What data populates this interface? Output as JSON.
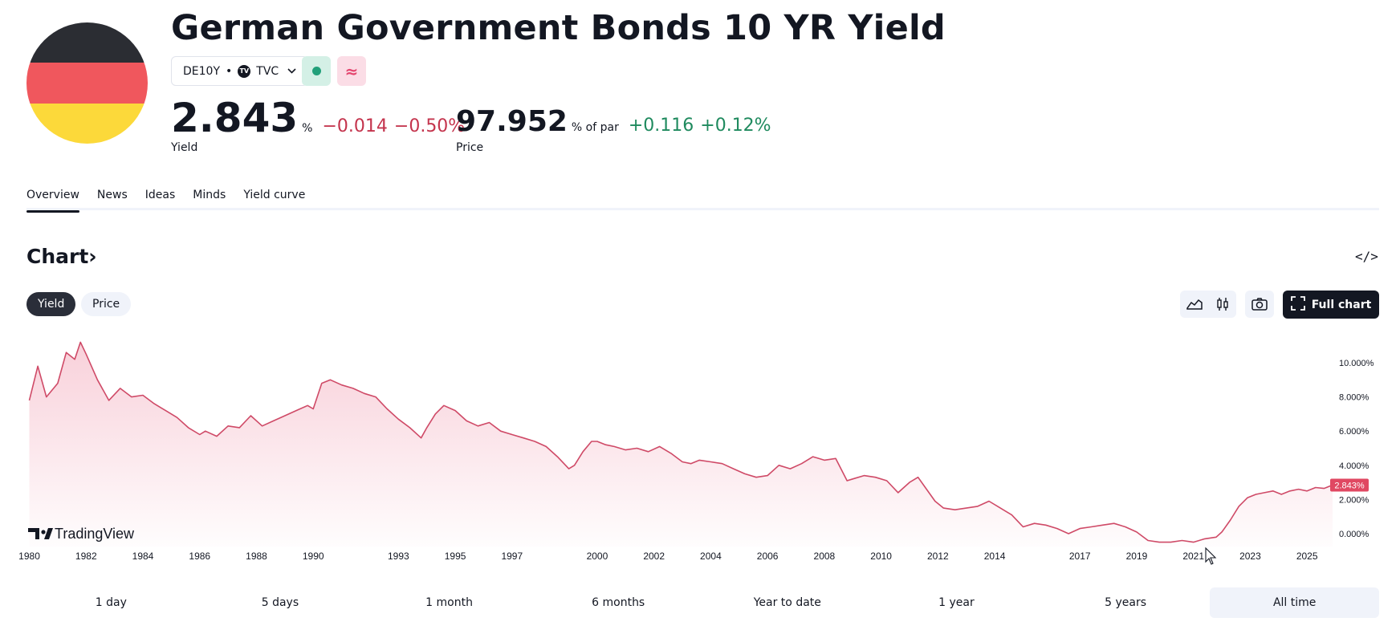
{
  "header": {
    "title": "German Government Bonds 10 YR Yield",
    "symbol": "DE10Y",
    "separator": "•",
    "exchange": "TVC",
    "exchange_logo": "TV",
    "market_badge_icon": "≈"
  },
  "yield": {
    "value": "2.843",
    "unit": "%",
    "change": "−0.014",
    "change_pct": "−0.50%",
    "label": "Yield"
  },
  "price": {
    "value": "97.952",
    "unit": "% of par",
    "change": "+0.116",
    "change_pct": "+0.12%",
    "label": "Price"
  },
  "tabs": [
    {
      "label": "Overview",
      "active": true
    },
    {
      "label": "News"
    },
    {
      "label": "Ideas"
    },
    {
      "label": "Minds"
    },
    {
      "label": "Yield curve"
    }
  ],
  "chart_section": {
    "heading": "Chart",
    "heading_arrow": "›",
    "embed_icon": "</>",
    "toggles": [
      {
        "label": "Yield",
        "active": true
      },
      {
        "label": "Price"
      }
    ],
    "full_chart_label": "Full chart",
    "watermark": "TradingView"
  },
  "colors": {
    "line": "#cf4a67",
    "fill": "#f8ced8",
    "badge_green": "#22a07a",
    "badge_pink": "#e4466f",
    "last_price_tag": "#e04862"
  },
  "icons": [
    "line-chart-icon",
    "candles-icon",
    "camera-icon",
    "fullscreen-icon",
    "code-icon",
    "tradingview-logo-icon"
  ],
  "chart_data": {
    "type": "area",
    "x_ticks": [
      "1980",
      "1982",
      "1984",
      "1986",
      "1988",
      "1990",
      "1993",
      "1995",
      "1997",
      "2000",
      "2002",
      "2004",
      "2006",
      "2008",
      "2010",
      "2012",
      "2014",
      "2017",
      "2019",
      "2021",
      "2023",
      "2025"
    ],
    "y_ticks": [
      "10.000%",
      "8.000%",
      "6.000%",
      "4.000%",
      "2.000%",
      "0.000%"
    ],
    "ylim": [
      -0.8,
      11.5
    ],
    "xlim": [
      1979.9,
      2025.9
    ],
    "last_value": "2.843%",
    "x": [
      1980.0,
      1980.3,
      1980.6,
      1981.0,
      1981.3,
      1981.6,
      1981.8,
      1982.0,
      1982.4,
      1982.8,
      1983.2,
      1983.6,
      1984.0,
      1984.4,
      1984.8,
      1985.2,
      1985.6,
      1986.0,
      1986.2,
      1986.6,
      1987.0,
      1987.4,
      1987.8,
      1988.2,
      1988.6,
      1989.0,
      1989.4,
      1989.8,
      1990.0,
      1990.3,
      1990.6,
      1991.0,
      1991.4,
      1991.8,
      1992.2,
      1992.6,
      1993.0,
      1993.4,
      1993.8,
      1994.0,
      1994.3,
      1994.6,
      1995.0,
      1995.4,
      1995.8,
      1996.2,
      1996.6,
      1997.0,
      1997.4,
      1997.8,
      1998.2,
      1998.6,
      1999.0,
      1999.2,
      1999.5,
      1999.8,
      2000.0,
      2000.3,
      2000.6,
      2001.0,
      2001.4,
      2001.8,
      2002.2,
      2002.6,
      2003.0,
      2003.3,
      2003.6,
      2004.0,
      2004.4,
      2004.8,
      2005.2,
      2005.6,
      2006.0,
      2006.4,
      2006.8,
      2007.2,
      2007.6,
      2008.0,
      2008.4,
      2008.8,
      2009.0,
      2009.4,
      2009.8,
      2010.2,
      2010.6,
      2011.0,
      2011.3,
      2011.6,
      2011.9,
      2012.2,
      2012.6,
      2013.0,
      2013.4,
      2013.8,
      2014.2,
      2014.6,
      2015.0,
      2015.4,
      2015.8,
      2016.2,
      2016.6,
      2017.0,
      2017.4,
      2017.8,
      2018.2,
      2018.6,
      2019.0,
      2019.4,
      2019.8,
      2020.2,
      2020.6,
      2021.0,
      2021.4,
      2021.8,
      2022.0,
      2022.3,
      2022.6,
      2022.9,
      2023.2,
      2023.5,
      2023.8,
      2024.1,
      2024.4,
      2024.7,
      2025.0,
      2025.3,
      2025.6,
      2025.9
    ],
    "values": [
      7.8,
      9.8,
      8.0,
      8.8,
      10.6,
      10.2,
      11.2,
      10.5,
      9.0,
      7.8,
      8.5,
      8.0,
      8.1,
      7.6,
      7.2,
      6.8,
      6.2,
      5.8,
      6.0,
      5.7,
      6.3,
      6.2,
      6.9,
      6.3,
      6.6,
      6.9,
      7.2,
      7.5,
      7.3,
      8.8,
      9.0,
      8.7,
      8.5,
      8.2,
      8.0,
      7.3,
      6.7,
      6.2,
      5.6,
      6.2,
      7.0,
      7.5,
      7.2,
      6.6,
      6.3,
      6.5,
      6.0,
      5.8,
      5.6,
      5.4,
      5.1,
      4.5,
      3.8,
      4.0,
      4.8,
      5.4,
      5.4,
      5.2,
      5.1,
      4.9,
      5.0,
      4.8,
      5.1,
      4.7,
      4.2,
      4.1,
      4.3,
      4.2,
      4.1,
      3.8,
      3.5,
      3.3,
      3.4,
      4.0,
      3.8,
      4.1,
      4.5,
      4.3,
      4.4,
      3.1,
      3.2,
      3.4,
      3.3,
      3.1,
      2.4,
      3.0,
      3.3,
      2.6,
      1.9,
      1.5,
      1.4,
      1.5,
      1.6,
      1.9,
      1.5,
      1.1,
      0.4,
      0.6,
      0.5,
      0.3,
      0.0,
      0.3,
      0.4,
      0.5,
      0.6,
      0.4,
      0.1,
      -0.4,
      -0.5,
      -0.5,
      -0.4,
      -0.5,
      -0.3,
      -0.2,
      0.1,
      0.8,
      1.6,
      2.1,
      2.3,
      2.4,
      2.5,
      2.3,
      2.5,
      2.6,
      2.5,
      2.7,
      2.65,
      2.843
    ]
  },
  "time_ranges": [
    {
      "label": "1 day"
    },
    {
      "label": "5 days"
    },
    {
      "label": "1 month"
    },
    {
      "label": "6 months"
    },
    {
      "label": "Year to date"
    },
    {
      "label": "1 year"
    },
    {
      "label": "5 years"
    },
    {
      "label": "All time",
      "active": true
    }
  ]
}
